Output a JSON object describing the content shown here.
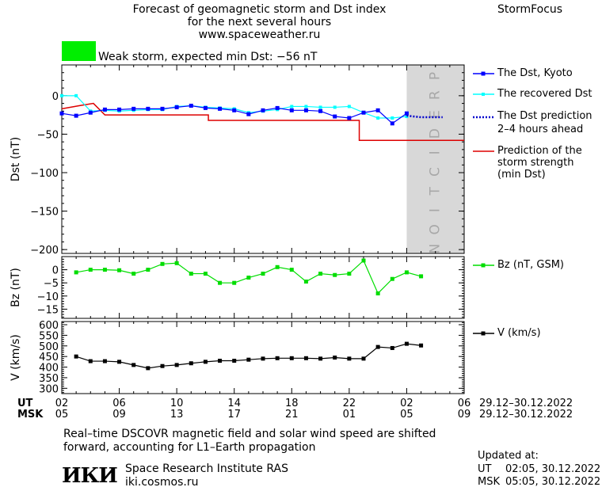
{
  "header": {
    "title_line1": "Forecast of geomagnetic storm and Dst index",
    "title_line2": "for the next several hours",
    "website": "www.spaceweather.ru",
    "brand": "StormFocus"
  },
  "storm_indicator": {
    "color": "#00ee00",
    "text": "Weak storm, expected min Dst: −56 nT"
  },
  "chart_data": [
    {
      "type": "line",
      "ylabel": "Dst (nT)",
      "ylim": [
        -205,
        40
      ],
      "yticks": [
        0,
        -50,
        -100,
        -150,
        -200
      ],
      "ytick_labels": [
        "0",
        "−50",
        "−100",
        "−150",
        "−200"
      ],
      "xlim_hours_ut": [
        2,
        30
      ],
      "prediction_band_hours": [
        26,
        30
      ],
      "prediction_label": "PREDICTION",
      "series": [
        {
          "name": "The Dst, Kyoto",
          "color": "#0000ff",
          "x": [
            2,
            3,
            4,
            5,
            6,
            7,
            8,
            9,
            10,
            11,
            12,
            13,
            14,
            15,
            16,
            17,
            18,
            19,
            20,
            21,
            22,
            23,
            24,
            25,
            26
          ],
          "y": [
            -23,
            -26,
            -22,
            -18,
            -18,
            -17,
            -17,
            -17,
            -15,
            -13,
            -16,
            -17,
            -19,
            -24,
            -19,
            -16,
            -19,
            -19,
            -20,
            -27,
            -29,
            -22,
            -19,
            -36,
            -23
          ]
        },
        {
          "name": "The recovered Dst",
          "color": "#00ffff",
          "x": [
            2,
            3,
            4,
            5,
            6,
            7,
            8,
            9,
            10,
            11,
            12,
            13,
            14,
            15,
            16,
            17,
            18,
            19,
            20,
            21,
            22,
            23,
            24,
            25,
            26
          ],
          "y": [
            0,
            0,
            -20,
            -19,
            -20,
            -19,
            -18,
            -18,
            -14,
            -13,
            -15,
            -16,
            -17,
            -22,
            -20,
            -18,
            -14,
            -14,
            -15,
            -15,
            -14,
            -22,
            -29,
            -29,
            -27
          ]
        },
        {
          "name": "The Dst prediction 2–4 hours ahead",
          "color": "#0000cc",
          "x": [
            26,
            26.5,
            27,
            27.5,
            28,
            28.5
          ],
          "y": [
            -26,
            -27,
            -28,
            -28,
            -28,
            -28
          ]
        },
        {
          "name": "Prediction of the storm strength (min Dst)",
          "color": "#dd0000",
          "x": [
            2,
            3.2,
            4.2,
            5,
            12.2,
            12.2,
            22.7,
            22.7,
            30
          ],
          "y": [
            -17,
            -13,
            -10,
            -25,
            -25,
            -32,
            -32,
            -58,
            -58
          ]
        }
      ]
    },
    {
      "type": "line",
      "ylabel": "Bz (nT)",
      "ylim": [
        -18.5,
        5
      ],
      "yticks": [
        0,
        -5,
        -10,
        -15
      ],
      "ytick_labels": [
        "0",
        "−5",
        "−10",
        "−15"
      ],
      "series": [
        {
          "name": "Bz (nT, GSM)",
          "color": "#00dd00",
          "x": [
            3,
            4,
            5,
            6,
            7,
            8,
            9,
            10,
            11,
            12,
            13,
            14,
            15,
            16,
            17,
            18,
            19,
            20,
            21,
            22,
            23,
            24,
            25,
            26,
            27
          ],
          "y": [
            -1,
            0,
            0,
            -0.2,
            -1.5,
            0,
            2.2,
            2.5,
            -1.5,
            -1.5,
            -5,
            -5,
            -3,
            -1.5,
            1,
            0,
            -4.5,
            -1.5,
            -2,
            -1.5,
            3.5,
            -9,
            -3.5,
            -1,
            -2.5
          ]
        }
      ]
    },
    {
      "type": "line",
      "ylabel": "V (km/s)",
      "ylim": [
        275,
        615
      ],
      "yticks": [
        600,
        550,
        500,
        450,
        400,
        350,
        300
      ],
      "ytick_labels": [
        "600",
        "550",
        "500",
        "450",
        "400",
        "350",
        "300"
      ],
      "series": [
        {
          "name": "V (km/s)",
          "color": "#000000",
          "x": [
            3,
            4,
            5,
            6,
            7,
            8,
            9,
            10,
            11,
            12,
            13,
            14,
            15,
            16,
            17,
            18,
            19,
            20,
            21,
            22,
            23,
            24,
            25,
            26,
            27
          ],
          "y": [
            450,
            428,
            428,
            425,
            410,
            395,
            405,
            410,
            418,
            425,
            430,
            430,
            435,
            440,
            442,
            442,
            442,
            440,
            445,
            440,
            440,
            495,
            490,
            510,
            502
          ]
        }
      ]
    }
  ],
  "x_axis": {
    "ut_label": "UT",
    "msk_label": "MSK",
    "ut_ticks": [
      "02",
      "06",
      "10",
      "14",
      "18",
      "22",
      "02",
      "06"
    ],
    "msk_ticks": [
      "05",
      "09",
      "13",
      "17",
      "21",
      "01",
      "05",
      "09"
    ],
    "date_range_ut": "29.12–30.12.2022",
    "date_range_msk": "29.12–30.12.2022"
  },
  "legend": {
    "dst_kyoto": "The Dst, Kyoto",
    "recovered": "The recovered Dst",
    "prediction_l1": "The Dst prediction",
    "prediction_l2": "2–4 hours ahead",
    "strength_l1": "Prediction of the",
    "strength_l2": "storm strength",
    "strength_l3": "(min Dst)",
    "bz": "Bz (nT, GSM)",
    "v": "V (km/s)"
  },
  "footer": {
    "note_line1": "Real–time DSCOVR magnetic field and solar wind speed are shifted",
    "note_line2": "forward, accounting for L1–Earth propagation",
    "logo_text": "ИКИ",
    "institute": "Space Research Institute RAS",
    "institute_url": "iki.cosmos.ru",
    "updated_label": "Updated at:",
    "updated_ut_label": "UT",
    "updated_ut": "02:05, 30.12.2022",
    "updated_msk_label": "MSK",
    "updated_msk": "05:05, 30.12.2022"
  }
}
